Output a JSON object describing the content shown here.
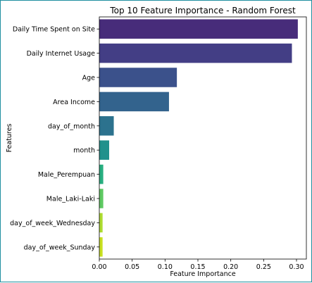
{
  "chart_data": {
    "type": "bar",
    "orientation": "horizontal",
    "title": "Top 10 Feature Importance - Random Forest",
    "xlabel": "Feature Importance",
    "ylabel": "Features",
    "categories": [
      "Daily Time Spent on Site",
      "Daily Internet Usage",
      "Age",
      "Area Income",
      "day_of_month",
      "month",
      "Male_Perempuan",
      "Male_Laki-Laki",
      "day_of_week_Wednesday",
      "day_of_week_Sunday"
    ],
    "values": [
      0.302,
      0.293,
      0.118,
      0.106,
      0.022,
      0.015,
      0.006,
      0.006,
      0.005,
      0.005
    ],
    "xlim": [
      0,
      0.315
    ],
    "xticks": [
      "0.00",
      "0.05",
      "0.10",
      "0.15",
      "0.20",
      "0.25",
      "0.30"
    ],
    "xtick_values": [
      0,
      0.05,
      0.1,
      0.15,
      0.2,
      0.25,
      0.3
    ],
    "colors": [
      "#472c7a",
      "#433e85",
      "#3b518b",
      "#33638d",
      "#2c728e",
      "#21918c",
      "#28ae80",
      "#5ec962",
      "#addc30",
      "#c8e020"
    ],
    "grid": false,
    "legend": "none"
  }
}
